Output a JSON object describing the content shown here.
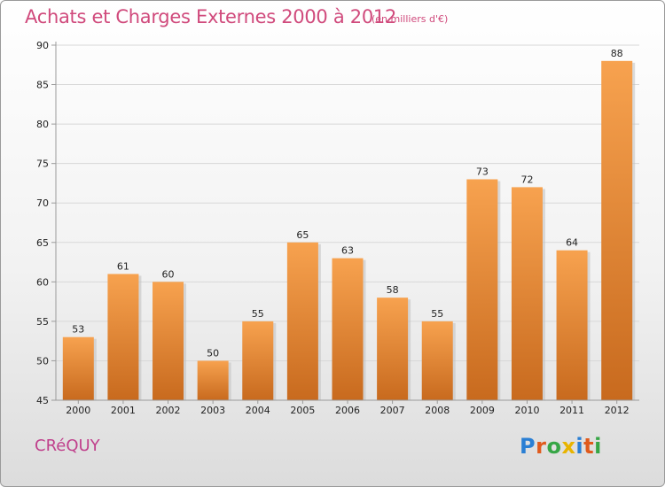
{
  "header": {
    "title": "Achats et Charges Externes 2000 à 2012",
    "subtitle": "(en milliers d'€)"
  },
  "footer": {
    "city": "CRéQUY",
    "logo_letters": [
      "P",
      "r",
      "o",
      "x",
      "i",
      "t",
      "i"
    ],
    "logo_colors": [
      "#2a7fd4",
      "#e05a1c",
      "#37a646",
      "#e8b400",
      "#2a7fd4",
      "#e05a1c",
      "#37a646"
    ]
  },
  "colors": {
    "bar_light": "#f7a24f",
    "bar_dark": "#c86a1e",
    "grid": "#d8d8d8",
    "axis": "#9a9a9a",
    "title": "#d04a7c"
  },
  "chart_data": {
    "type": "bar",
    "title": "Achats et Charges Externes 2000 à 2012",
    "xlabel": "",
    "ylabel": "",
    "categories": [
      "2000",
      "2001",
      "2002",
      "2003",
      "2004",
      "2005",
      "2006",
      "2007",
      "2008",
      "2009",
      "2010",
      "2011",
      "2012"
    ],
    "values": [
      53,
      61,
      60,
      50,
      55,
      65,
      63,
      58,
      55,
      73,
      72,
      64,
      88
    ],
    "ylim": [
      45,
      90
    ],
    "yticks": [
      45,
      50,
      55,
      60,
      65,
      70,
      75,
      80,
      85,
      90
    ],
    "grid": true,
    "legend": "none"
  }
}
